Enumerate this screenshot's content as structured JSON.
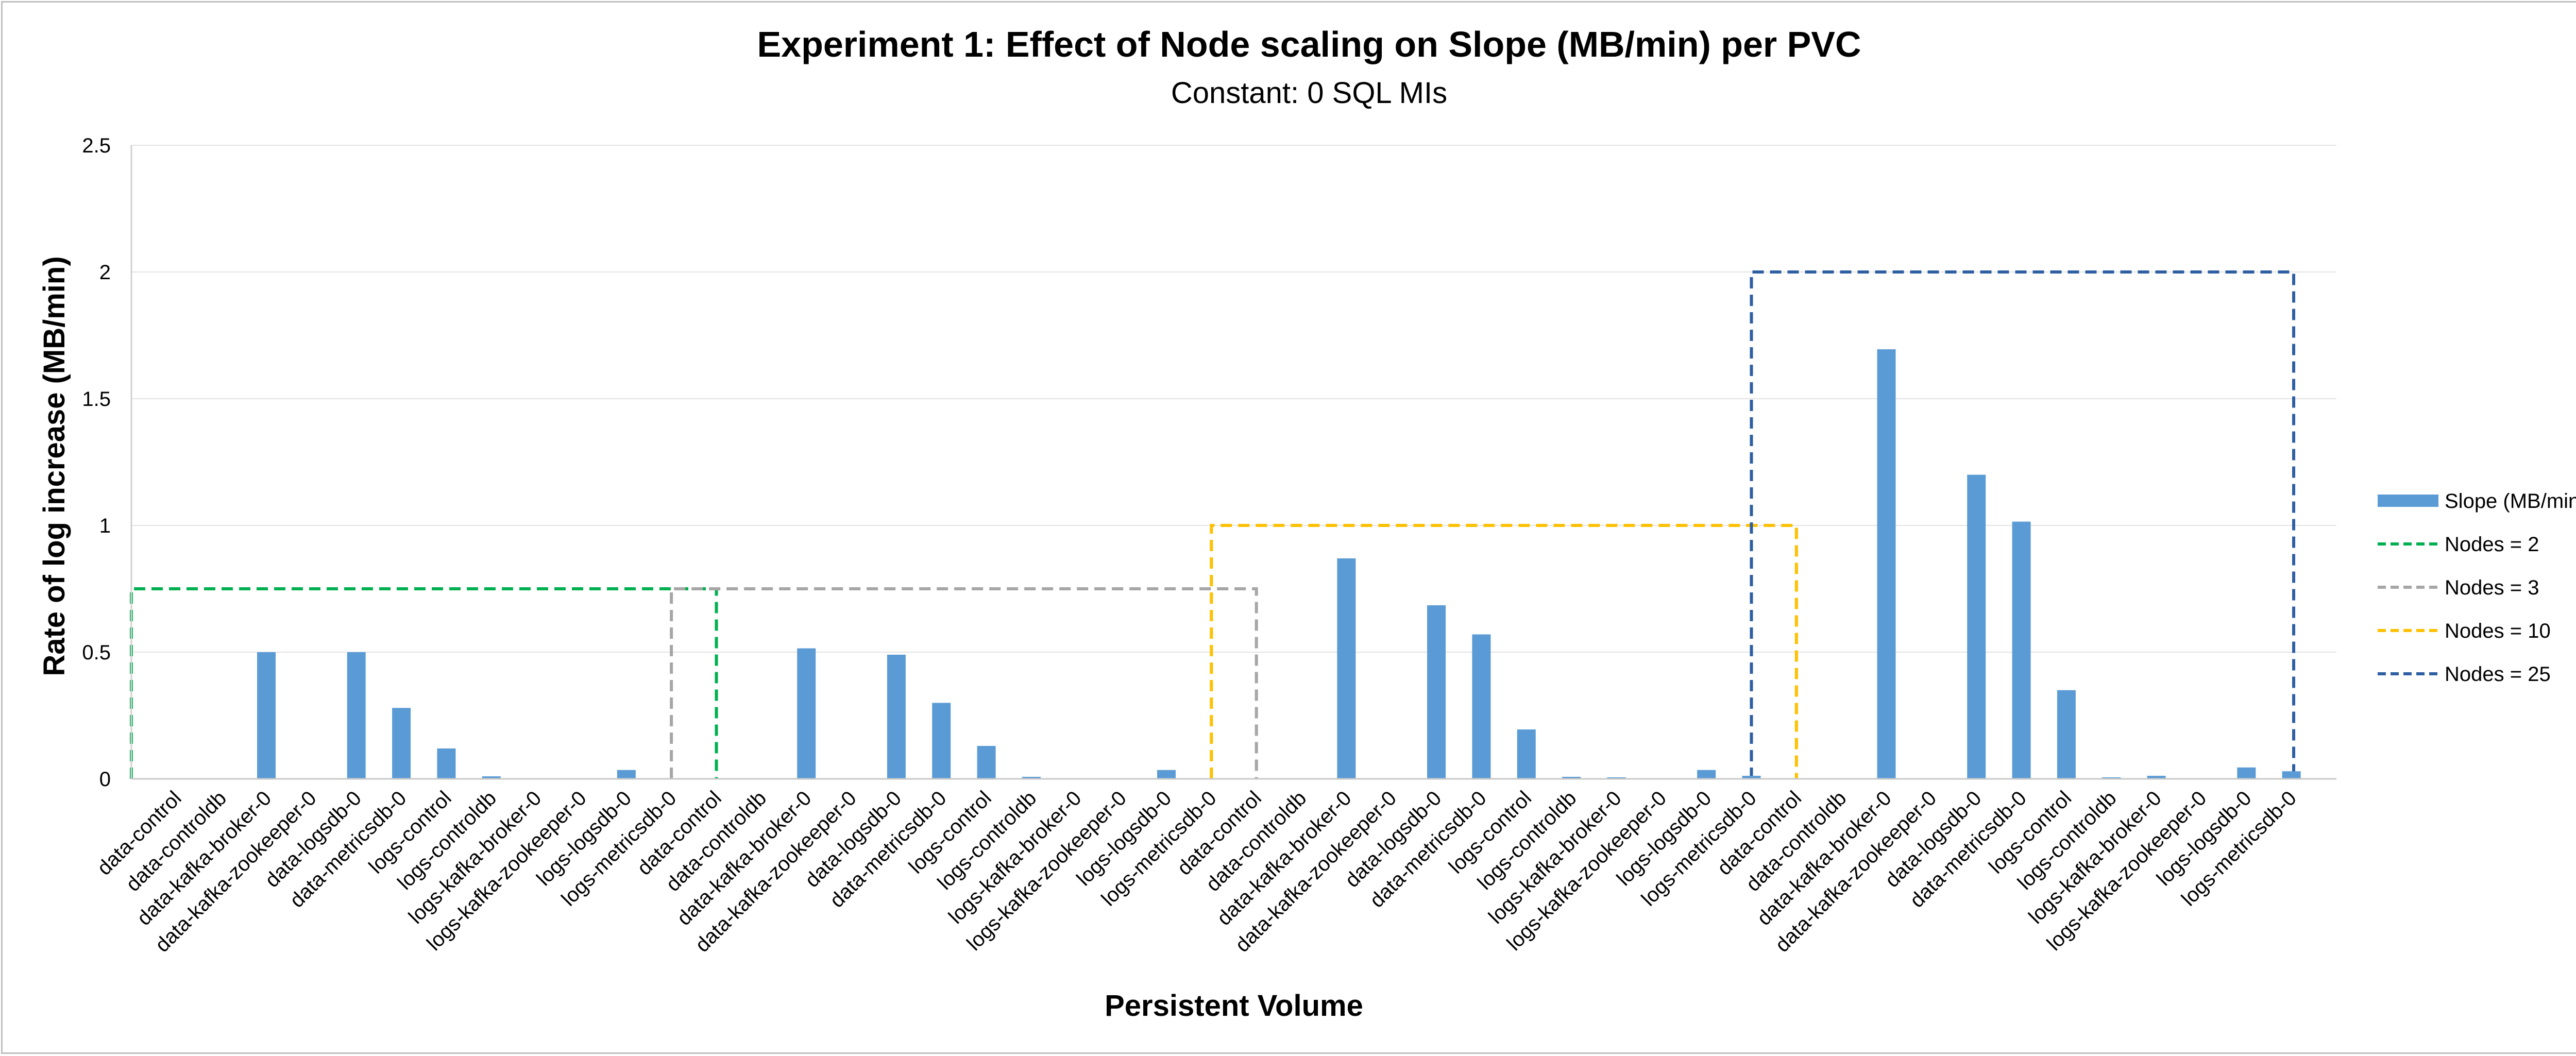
{
  "chart_data": {
    "type": "bar",
    "title": "Experiment 1: Effect of Node scaling on Slope (MB/min) per PVC",
    "subtitle": "Constant: 0 SQL MIs",
    "xlabel": "Persistent Volume",
    "ylabel": "Rate of log increase (MB/min)",
    "ylim": [
      0,
      2.5
    ],
    "yticks": [
      "0",
      "0.5",
      "1",
      "1.5",
      "2",
      "2.5"
    ],
    "yticks_values": [
      0,
      0.5,
      1,
      1.5,
      2,
      2.5
    ],
    "grid": true,
    "legend_position": "right",
    "bar_color": "#5b9bd5",
    "categories": [
      "data-control",
      "data-controldb",
      "data-kafka-broker-0",
      "data-kafka-zookeeper-0",
      "data-logsdb-0",
      "data-metricsdb-0",
      "logs-control",
      "logs-controldb",
      "logs-kafka-broker-0",
      "logs-kafka-zookeeper-0",
      "logs-logsdb-0",
      "logs-metricsdb-0",
      "data-control",
      "data-controldb",
      "data-kafka-broker-0",
      "data-kafka-zookeeper-0",
      "data-logsdb-0",
      "data-metricsdb-0",
      "logs-control",
      "logs-controldb",
      "logs-kafka-broker-0",
      "logs-kafka-zookeeper-0",
      "logs-logsdb-0",
      "logs-metricsdb-0",
      "data-control",
      "data-controldb",
      "data-kafka-broker-0",
      "data-kafka-zookeeper-0",
      "data-logsdb-0",
      "data-metricsdb-0",
      "logs-control",
      "logs-controldb",
      "logs-kafka-broker-0",
      "logs-kafka-zookeeper-0",
      "logs-logsdb-0",
      "logs-metricsdb-0",
      "data-control",
      "data-controldb",
      "data-kafka-broker-0",
      "data-kafka-zookeeper-0",
      "data-logsdb-0",
      "data-metricsdb-0",
      "logs-control",
      "logs-controldb",
      "logs-kafka-broker-0",
      "logs-kafka-zookeeper-0",
      "logs-logsdb-0",
      "logs-metricsdb-0"
    ],
    "series": [
      {
        "name": "Slope (MB/min)",
        "color": "#5b9bd5",
        "values": [
          0,
          0,
          0.5,
          0,
          0.5,
          0.28,
          0.12,
          0.01,
          0,
          0,
          0.035,
          0.003,
          0,
          0,
          0.515,
          0,
          0.49,
          0.3,
          0.13,
          0.008,
          0,
          0,
          0.035,
          0.003,
          0,
          0,
          0.87,
          0,
          0.685,
          0.57,
          0.195,
          0.008,
          0.006,
          0,
          0.035,
          0.012,
          0,
          0,
          1.695,
          0,
          1.2,
          1.015,
          0.35,
          0.006,
          0.012,
          0,
          0.045,
          0.03
        ]
      }
    ],
    "regions": [
      {
        "name": "Nodes = 2",
        "color": "#00b050",
        "start_index": 0,
        "end_index": 11,
        "level": 0.75
      },
      {
        "name": "Nodes = 3",
        "color": "#a6a6a6",
        "start_index": 12,
        "end_index": 23,
        "level": 0.75
      },
      {
        "name": "Nodes = 10",
        "color": "#ffc000",
        "start_index": 24,
        "end_index": 35,
        "level": 1
      },
      {
        "name": "Nodes = 25",
        "color": "#2e5fa3",
        "start_index": 36,
        "end_index": 47,
        "level": 2
      }
    ]
  }
}
